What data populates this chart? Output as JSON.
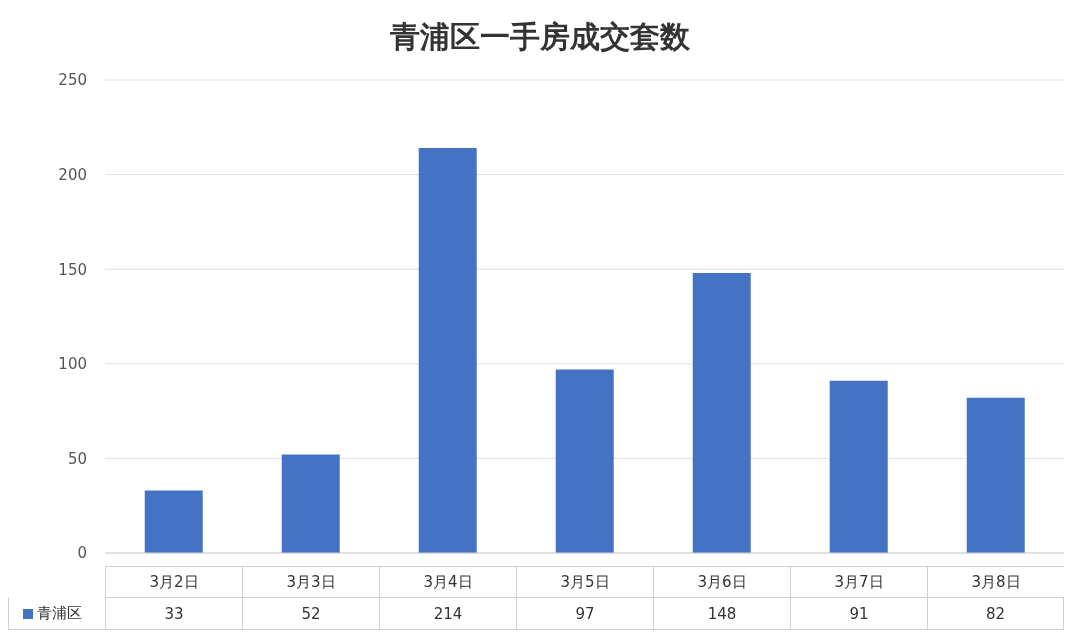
{
  "chart_data": {
    "type": "bar",
    "title": "青浦区一手房成交套数",
    "categories": [
      "3月2日",
      "3月3日",
      "3月4日",
      "3月5日",
      "3月6日",
      "3月7日",
      "3月8日"
    ],
    "series": [
      {
        "name": "青浦区",
        "color": "#4472c4",
        "values": [
          33,
          52,
          214,
          97,
          148,
          91,
          82
        ]
      }
    ],
    "ylim": [
      0,
      250
    ],
    "yticks": [
      0,
      50,
      100,
      150,
      200,
      250
    ],
    "grid": "y",
    "legend": "bottom",
    "data_labels": true
  }
}
